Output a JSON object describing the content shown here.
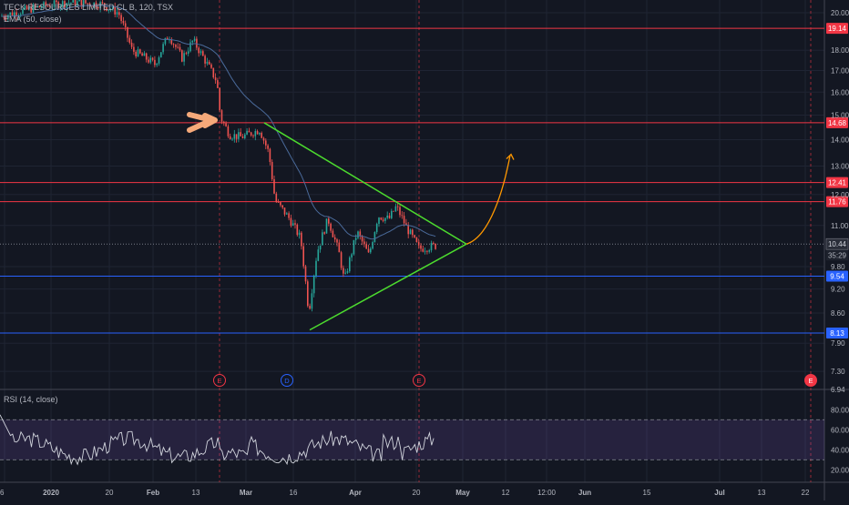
{
  "header": {
    "symbol_line": "TECK RESOURCES LIMITED CL B, 120, TSX",
    "ema_label": "EMA (50, close)",
    "rsi_label": "RSI (14, close)"
  },
  "chart_data": [
    {
      "type": "candlestick",
      "title": "TECK RESOURCES LIMITED CL B, 120, TSX",
      "ylim": [
        6.94,
        20.6
      ],
      "scale": "log",
      "price_ticks": [
        "20.00",
        "18.00",
        "17.00",
        "16.00",
        "15.00",
        "14.00",
        "13.00",
        "12.00",
        "11.00",
        "9.80",
        "9.20",
        "8.60",
        "7.90",
        "7.30",
        "6.94"
      ],
      "time_ticks": [
        "6",
        "2020",
        "20",
        "Feb",
        "13",
        "Mar",
        "16",
        "Apr",
        "20",
        "May",
        "12",
        "12:00",
        "Jun",
        "15",
        "Jul",
        "13",
        "22"
      ],
      "current_price": "10.44",
      "countdown": "35:29",
      "horizontal_levels": [
        {
          "price": 19.14,
          "label": "19.14",
          "color": "#f23645"
        },
        {
          "price": 14.68,
          "label": "14.68",
          "color": "#f23645"
        },
        {
          "price": 12.41,
          "label": "12.41",
          "color": "#f23645"
        },
        {
          "price": 11.76,
          "label": "11.76",
          "color": "#f23645"
        },
        {
          "price": 9.54,
          "label": "9.54",
          "color": "#2962ff"
        },
        {
          "price": 8.13,
          "label": "8.13",
          "color": "#2962ff"
        }
      ],
      "series": [
        {
          "name": "EMA (50, close)",
          "color": "#4a6a9a"
        }
      ],
      "event_markers": [
        {
          "letter": "E",
          "color": "#f23645"
        },
        {
          "letter": "D",
          "color": "#2962ff"
        },
        {
          "letter": "E",
          "color": "#f23645"
        },
        {
          "letter": "E",
          "color": "#f23645",
          "filled": true
        }
      ],
      "annotations": {
        "triangle_color": "#4cdb2e",
        "projection_color": "#ff9800",
        "pointer_color": "#f5a97a"
      },
      "grid": true
    },
    {
      "type": "line",
      "title": "RSI (14, close)",
      "ylim": [
        12,
        92
      ],
      "ticks": [
        "80.00",
        "60.00",
        "40.00",
        "20.00"
      ],
      "band": [
        30,
        70
      ],
      "colors": {
        "line": "#d1d4dc",
        "band": "#7e57c2"
      }
    }
  ]
}
